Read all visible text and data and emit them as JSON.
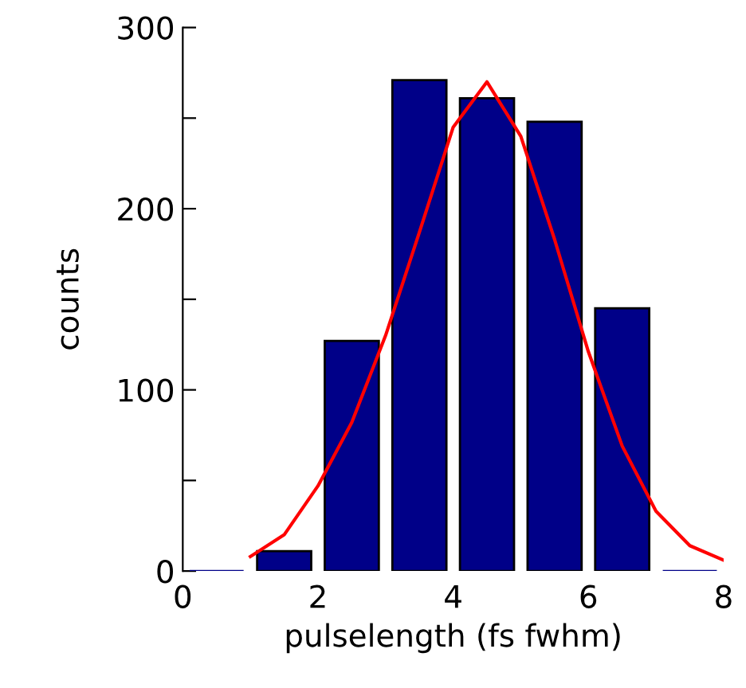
{
  "chart_data": {
    "type": "histogram",
    "xlabel": "pulselength (fs fwhm)",
    "ylabel": "counts",
    "bins": [
      0,
      1,
      2,
      3,
      4,
      5,
      6,
      7,
      8
    ],
    "values": [
      0,
      11,
      127,
      271,
      261,
      248,
      145,
      0
    ],
    "color": "#000088",
    "series": [
      {
        "type": "line",
        "color": "#ff0000",
        "x": [
          1,
          1.5,
          2,
          2.5,
          3,
          3.5,
          4,
          4.5,
          5,
          5.5,
          6,
          6.5,
          7,
          7.5,
          8
        ],
        "values": [
          8,
          20,
          47,
          82,
          130,
          187,
          245,
          270,
          240,
          183,
          121,
          69,
          33,
          14,
          6
        ]
      }
    ],
    "xlim": [
      0,
      8
    ],
    "ylim": [
      0,
      300
    ],
    "xticks": [
      0,
      2,
      4,
      6,
      8
    ],
    "yticks": [
      0,
      {
        "value": 50,
        "label": null
      },
      100,
      {
        "value": 150,
        "label": null
      },
      200,
      {
        "value": 250,
        "label": null
      },
      300
    ],
    "grid": false,
    "legend": false
  }
}
